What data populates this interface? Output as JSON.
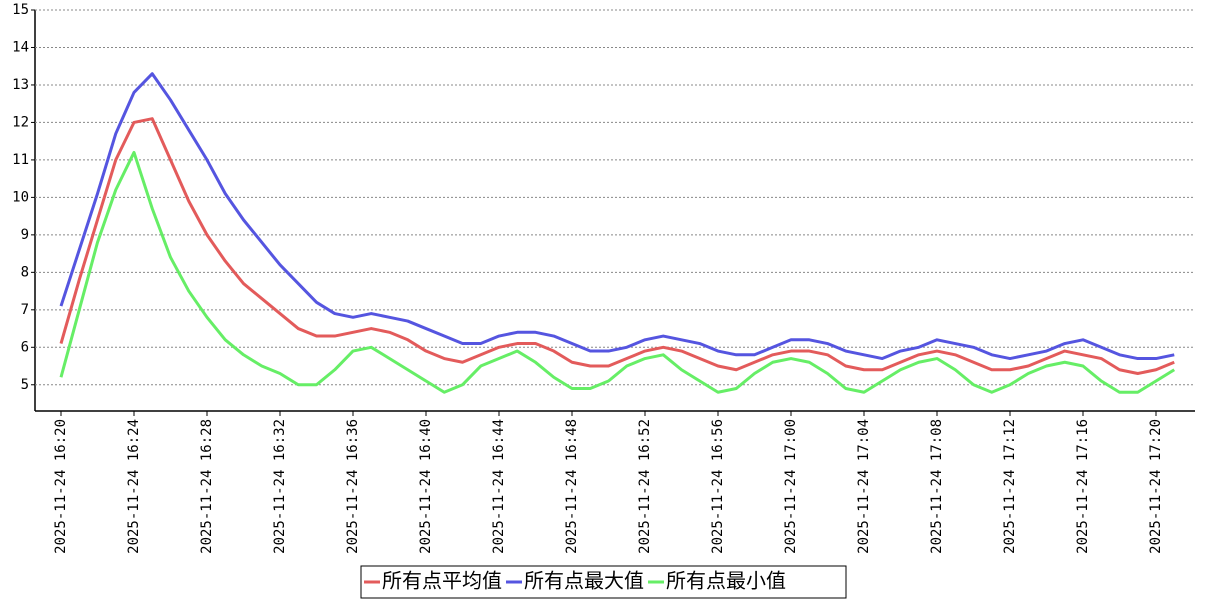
{
  "chart_data": {
    "type": "line",
    "categories": [
      "2025-11-24 16:20",
      null,
      null,
      null,
      "2025-11-24 16:24",
      null,
      null,
      null,
      "2025-11-24 16:28",
      null,
      null,
      null,
      "2025-11-24 16:32",
      null,
      null,
      null,
      "2025-11-24 16:36",
      null,
      null,
      null,
      "2025-11-24 16:40",
      null,
      null,
      null,
      "2025-11-24 16:44",
      null,
      null,
      null,
      "2025-11-24 16:48",
      null,
      null,
      null,
      "2025-11-24 16:52",
      null,
      null,
      null,
      "2025-11-24 16:56",
      null,
      null,
      null,
      "2025-11-24 17:00",
      null,
      null,
      null,
      "2025-11-24 17:04",
      null,
      null,
      null,
      "2025-11-24 17:08",
      null,
      null,
      null,
      "2025-11-24 17:12",
      null,
      null,
      null,
      "2025-11-24 17:16",
      null,
      null,
      null,
      "2025-11-24 17:20",
      null
    ],
    "series": [
      {
        "name": "所有点平均值",
        "color": "#e35b5b",
        "values": [
          6.1,
          7.8,
          9.4,
          11.0,
          12.0,
          12.1,
          11.0,
          9.9,
          9.0,
          8.3,
          7.7,
          7.3,
          6.9,
          6.5,
          6.3,
          6.3,
          6.4,
          6.5,
          6.4,
          6.2,
          5.9,
          5.7,
          5.6,
          5.8,
          6.0,
          6.1,
          6.1,
          5.9,
          5.6,
          5.5,
          5.5,
          5.7,
          5.9,
          6.0,
          5.9,
          5.7,
          5.5,
          5.4,
          5.6,
          5.8,
          5.9,
          5.9,
          5.8,
          5.5,
          5.4,
          5.4,
          5.6,
          5.8,
          5.9,
          5.8,
          5.6,
          5.4,
          5.4,
          5.5,
          5.7,
          5.9,
          5.8,
          5.7,
          5.4,
          5.3,
          5.4,
          5.6
        ]
      },
      {
        "name": "所有点最大值",
        "color": "#5555e0",
        "values": [
          7.1,
          8.6,
          10.1,
          11.7,
          12.8,
          13.3,
          12.6,
          11.8,
          11.0,
          10.1,
          9.4,
          8.8,
          8.2,
          7.7,
          7.2,
          6.9,
          6.8,
          6.9,
          6.8,
          6.7,
          6.5,
          6.3,
          6.1,
          6.1,
          6.3,
          6.4,
          6.4,
          6.3,
          6.1,
          5.9,
          5.9,
          6.0,
          6.2,
          6.3,
          6.2,
          6.1,
          5.9,
          5.8,
          5.8,
          6.0,
          6.2,
          6.2,
          6.1,
          5.9,
          5.8,
          5.7,
          5.9,
          6.0,
          6.2,
          6.1,
          6.0,
          5.8,
          5.7,
          5.8,
          5.9,
          6.1,
          6.2,
          6.0,
          5.8,
          5.7,
          5.7,
          5.8
        ]
      },
      {
        "name": "所有点最小值",
        "color": "#66ee66",
        "values": [
          5.2,
          7.0,
          8.8,
          10.2,
          11.2,
          9.7,
          8.4,
          7.5,
          6.8,
          6.2,
          5.8,
          5.5,
          5.3,
          5.0,
          5.0,
          5.4,
          5.9,
          6.0,
          5.7,
          5.4,
          5.1,
          4.8,
          5.0,
          5.5,
          5.7,
          5.9,
          5.6,
          5.2,
          4.9,
          4.9,
          5.1,
          5.5,
          5.7,
          5.8,
          5.4,
          5.1,
          4.8,
          4.9,
          5.3,
          5.6,
          5.7,
          5.6,
          5.3,
          4.9,
          4.8,
          5.1,
          5.4,
          5.6,
          5.7,
          5.4,
          5.0,
          4.8,
          5.0,
          5.3,
          5.5,
          5.6,
          5.5,
          5.1,
          4.8,
          4.8,
          5.1,
          5.4
        ]
      }
    ],
    "ylim": [
      4.3,
      15
    ],
    "yticks": [
      5,
      6,
      7,
      8,
      9,
      10,
      11,
      12,
      13,
      14,
      15
    ],
    "grid": true
  }
}
